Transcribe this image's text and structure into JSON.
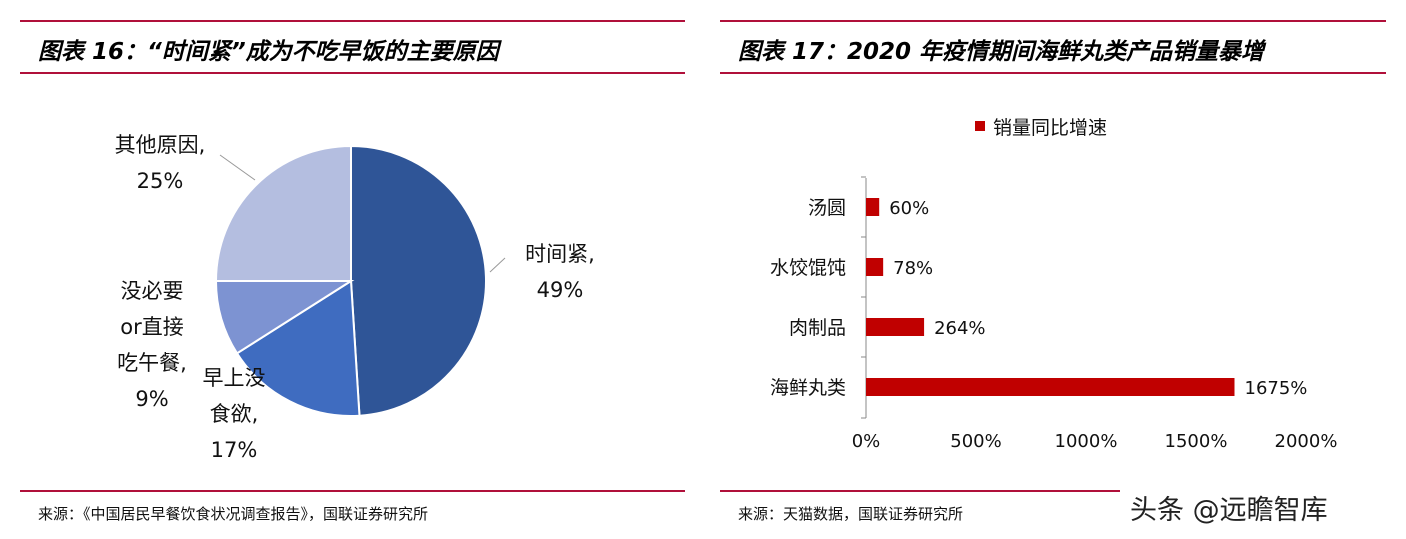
{
  "left": {
    "title": "图表 16：“时间紧”成为不吃早饭的主要原因",
    "source": "来源：《中国居民早餐饮食状况调查报告》，国联证券研究所"
  },
  "right": {
    "title": "图表 17：2020 年疫情期间海鲜丸类产品销量暴增",
    "source": "来源：天猫数据，国联证券研究所"
  },
  "watermark": "头条 @远瞻智库",
  "chart_data": [
    {
      "type": "pie",
      "slices": [
        {
          "label": "时间紧,",
          "value": 49,
          "value_label": "49%",
          "color": "#2F5597"
        },
        {
          "label": "早上没食欲,",
          "value": 17,
          "value_label": "17%",
          "color": "#3F6CC0"
        },
        {
          "label": "没必要or直接吃午餐,",
          "value": 9,
          "value_label": "9%",
          "color": "#7D93D2"
        },
        {
          "label": "其他原因,",
          "value": 25,
          "value_label": "25%",
          "color": "#B4BEE0"
        }
      ]
    },
    {
      "type": "bar",
      "orientation": "horizontal",
      "legend": "销量同比增速",
      "legend_position": "top",
      "color": "#C00000",
      "categories": [
        "汤圆",
        "水饺馄饨",
        "肉制品",
        "海鲜丸类"
      ],
      "values": [
        60,
        78,
        264,
        1675
      ],
      "data_labels": [
        "60%",
        "78%",
        "264%",
        "1675%"
      ],
      "xlim": [
        0,
        2000
      ],
      "xticks": [
        "0%",
        "500%",
        "1000%",
        "1500%",
        "2000%"
      ]
    }
  ]
}
